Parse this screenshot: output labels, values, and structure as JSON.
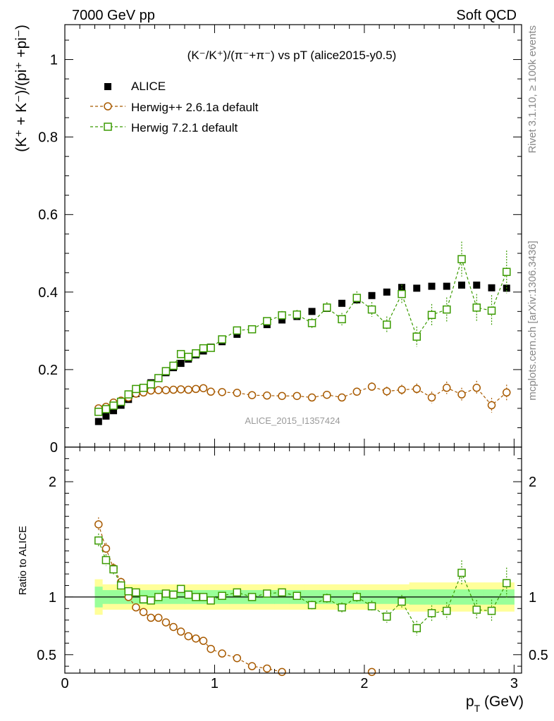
{
  "header": {
    "left": "7000 GeV pp",
    "right": "Soft QCD"
  },
  "side": {
    "rivet": "Rivet 3.1.10, ≥ 100k events",
    "mcplots": "mcplots.cern.ch [arXiv:1306.3436]"
  },
  "chart_data": {
    "type": "scatter",
    "title": "(K⁻/K⁺)/(π⁻+π⁻) vs pT (alice2015-y0.5)",
    "ylabel": "(K⁺ + K⁻)/(pi⁺ +pi⁻)",
    "xlabel": "p_T (GeV)",
    "ratio_ylabel": "Ratio to ALICE",
    "watermark": "ALICE_2015_I1357424",
    "xlim": [
      0,
      3.05
    ],
    "ylim": [
      0,
      1.09
    ],
    "ratio_ylim": [
      0.34,
      2.3
    ],
    "x_ticks": [
      "0",
      "1",
      "2",
      "3"
    ],
    "y_ticks": [
      "0",
      "0.2",
      "0.4",
      "0.6",
      "0.8",
      "1"
    ],
    "ratio_y_ticks": [
      "0.5",
      "1",
      "2"
    ],
    "legend_placement": "top-left",
    "series": [
      {
        "name": "ALICE",
        "color": "#000000",
        "marker": "filled-square",
        "x": [
          0.225,
          0.275,
          0.325,
          0.375,
          0.425,
          0.475,
          0.525,
          0.575,
          0.625,
          0.675,
          0.725,
          0.775,
          0.825,
          0.875,
          0.925,
          0.975,
          1.05,
          1.15,
          1.25,
          1.35,
          1.45,
          1.55,
          1.65,
          1.75,
          1.85,
          1.95,
          2.05,
          2.15,
          2.25,
          2.35,
          2.45,
          2.55,
          2.65,
          2.75,
          2.85,
          2.95
        ],
        "y": [
          0.066,
          0.08,
          0.094,
          0.108,
          0.123,
          0.138,
          0.153,
          0.166,
          0.179,
          0.192,
          0.205,
          0.216,
          0.227,
          0.238,
          0.248,
          0.258,
          0.272,
          0.291,
          0.305,
          0.316,
          0.328,
          0.337,
          0.35,
          0.358,
          0.371,
          0.38,
          0.391,
          0.4,
          0.412,
          0.41,
          0.415,
          0.415,
          0.418,
          0.418,
          0.411,
          0.41
        ],
        "band_inner": 0.06,
        "band_outer": 0.11
      },
      {
        "name": "Herwig++ 2.6.1a default",
        "color": "#a85a00",
        "marker": "open-circle",
        "x": [
          0.225,
          0.275,
          0.325,
          0.375,
          0.425,
          0.475,
          0.525,
          0.575,
          0.625,
          0.675,
          0.725,
          0.775,
          0.825,
          0.875,
          0.925,
          0.975,
          1.05,
          1.15,
          1.25,
          1.35,
          1.45,
          1.55,
          1.65,
          1.75,
          1.85,
          1.95,
          2.05,
          2.15,
          2.25,
          2.35,
          2.45,
          2.55,
          2.65,
          2.75,
          2.85,
          2.95
        ],
        "y": [
          0.1,
          0.104,
          0.115,
          0.12,
          0.128,
          0.138,
          0.141,
          0.146,
          0.147,
          0.147,
          0.148,
          0.149,
          0.148,
          0.15,
          0.152,
          0.143,
          0.142,
          0.14,
          0.134,
          0.133,
          0.132,
          0.132,
          0.128,
          0.135,
          0.128,
          0.143,
          0.156,
          0.144,
          0.148,
          0.15,
          0.128,
          0.153,
          0.136,
          0.153,
          0.108,
          0.141
        ],
        "err": [
          0.004,
          0.004,
          0.004,
          0.004,
          0.004,
          0.004,
          0.004,
          0.004,
          0.004,
          0.004,
          0.005,
          0.005,
          0.005,
          0.005,
          0.005,
          0.005,
          0.005,
          0.006,
          0.006,
          0.006,
          0.007,
          0.007,
          0.008,
          0.008,
          0.009,
          0.01,
          0.011,
          0.012,
          0.013,
          0.014,
          0.015,
          0.016,
          0.017,
          0.018,
          0.019,
          0.02
        ],
        "ratio": [
          1.63,
          1.42,
          1.25,
          1.13,
          1.0,
          0.91,
          0.87,
          0.82,
          0.82,
          0.78,
          0.74,
          0.7,
          0.66,
          0.64,
          0.62,
          0.55,
          0.51,
          0.47,
          0.4,
          0.38,
          0.35,
          null,
          null,
          null,
          null,
          null,
          0.35,
          null,
          null,
          null,
          null,
          null,
          null,
          null,
          null,
          null
        ]
      },
      {
        "name": "Herwig 7.2.1 default",
        "color": "#3a9a00",
        "marker": "open-square",
        "x": [
          0.225,
          0.275,
          0.325,
          0.375,
          0.425,
          0.475,
          0.525,
          0.575,
          0.625,
          0.675,
          0.725,
          0.775,
          0.825,
          0.875,
          0.925,
          0.975,
          1.05,
          1.15,
          1.25,
          1.35,
          1.45,
          1.55,
          1.65,
          1.75,
          1.85,
          1.95,
          2.05,
          2.15,
          2.25,
          2.35,
          2.45,
          2.55,
          2.65,
          2.75,
          2.85,
          2.95
        ],
        "y": [
          0.091,
          0.098,
          0.107,
          0.117,
          0.136,
          0.15,
          0.153,
          0.162,
          0.178,
          0.196,
          0.21,
          0.24,
          0.233,
          0.242,
          0.255,
          0.256,
          0.278,
          0.301,
          0.304,
          0.325,
          0.34,
          0.342,
          0.32,
          0.36,
          0.33,
          0.385,
          0.355,
          0.316,
          0.395,
          0.285,
          0.341,
          0.355,
          0.485,
          0.36,
          0.352,
          0.452
        ],
        "err": [
          0.004,
          0.004,
          0.004,
          0.004,
          0.004,
          0.004,
          0.005,
          0.005,
          0.005,
          0.005,
          0.005,
          0.006,
          0.006,
          0.006,
          0.006,
          0.007,
          0.007,
          0.008,
          0.009,
          0.01,
          0.011,
          0.012,
          0.013,
          0.014,
          0.016,
          0.017,
          0.019,
          0.021,
          0.024,
          0.026,
          0.028,
          0.031,
          0.045,
          0.035,
          0.04,
          0.055
        ],
        "ratio": [
          1.49,
          1.32,
          1.24,
          1.1,
          1.05,
          1.04,
          0.98,
          0.97,
          1.0,
          1.03,
          1.02,
          1.07,
          1.02,
          1.0,
          1.0,
          0.97,
          1.01,
          1.04,
          1.0,
          1.03,
          1.04,
          1.01,
          0.93,
          0.99,
          0.91,
          1.0,
          0.92,
          0.83,
          0.96,
          0.73,
          0.86,
          0.88,
          1.21,
          0.89,
          0.88,
          1.12
        ]
      }
    ]
  }
}
